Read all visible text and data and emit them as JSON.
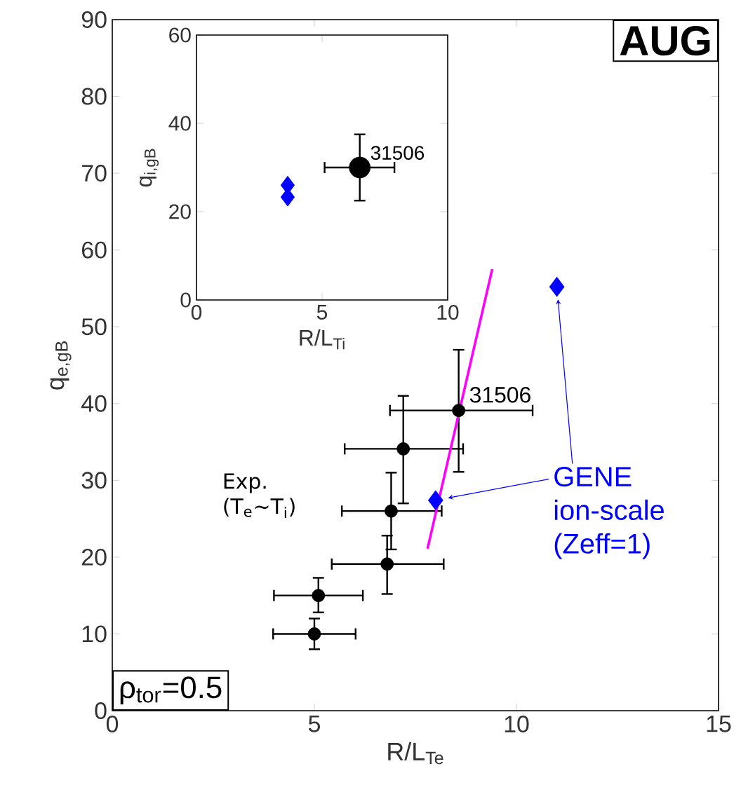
{
  "chart_data": [
    {
      "type": "scatter",
      "xlabel": "R/L$_{Te}$",
      "ylabel": "q$_{e,gB}$",
      "xlim": [
        0,
        15
      ],
      "xticks": [
        0,
        5,
        10,
        15
      ],
      "ylim": [
        0,
        90
      ],
      "yticks": [
        0,
        10,
        20,
        30,
        40,
        50,
        60,
        70,
        80,
        90
      ],
      "annotations": [
        "AUG",
        {
          "text": "31506",
          "x": 8.57,
          "y": 39.1
        },
        "ρ$_{tor}$=0.5"
      ],
      "series": [
        {
          "name": "Exp. (T$_{e}$∼T$_{i}$)",
          "color": "#000000",
          "marker": "circle",
          "x": [
            5.0,
            5.1,
            6.8,
            6.9,
            7.2,
            8.57
          ],
          "values": [
            10,
            15,
            19.1,
            26,
            34.1,
            39.1
          ],
          "errors": [
            [
              8,
              12
            ],
            [
              12.8,
              17.3
            ],
            [
              15.2,
              22.8
            ],
            [
              21,
              31
            ],
            [
              27,
              41
            ],
            [
              31.1,
              47
            ]
          ],
          "xerrors": [
            [
              3.98,
              6.02
            ],
            [
              4.0,
              6.2
            ],
            [
              5.43,
              8.2
            ],
            [
              5.68,
              8.15
            ],
            [
              5.75,
              8.68
            ],
            [
              6.87,
              10.4
            ]
          ]
        },
        {
          "name": "GENE ion-scale (Zeff=1)",
          "color": "#0000ff",
          "marker": "diamond",
          "x": [
            8.0,
            11.0
          ],
          "values": [
            27.4,
            55.2
          ]
        },
        {
          "type": "line",
          "color": "#ff00ff",
          "marker": "none",
          "x": [
            7.8,
            9.4
          ],
          "values": [
            21.1,
            57.5
          ]
        }
      ]
    },
    {
      "type": "scatter",
      "xlabel": "R/L$_{Ti}$",
      "ylabel": "q$_{i,gB}$",
      "xlim": [
        0,
        10
      ],
      "xticks": [
        0,
        5,
        10
      ],
      "ylim": [
        0,
        60
      ],
      "yticks": [
        0,
        20,
        40,
        60
      ],
      "annotations": [
        {
          "text": "31506",
          "x": 6.5,
          "y": 30
        }
      ],
      "series": [
        {
          "color": "#000000",
          "marker": "circle",
          "x": [
            6.5
          ],
          "values": [
            30
          ],
          "errors": [
            [
              22.5,
              37.5
            ]
          ],
          "xerrors": [
            [
              5.1,
              7.88
            ]
          ]
        },
        {
          "color": "#0000ff",
          "marker": "diamond",
          "x": [
            3.63,
            3.63
          ],
          "values": [
            26.0,
            23.3
          ]
        }
      ]
    }
  ]
}
